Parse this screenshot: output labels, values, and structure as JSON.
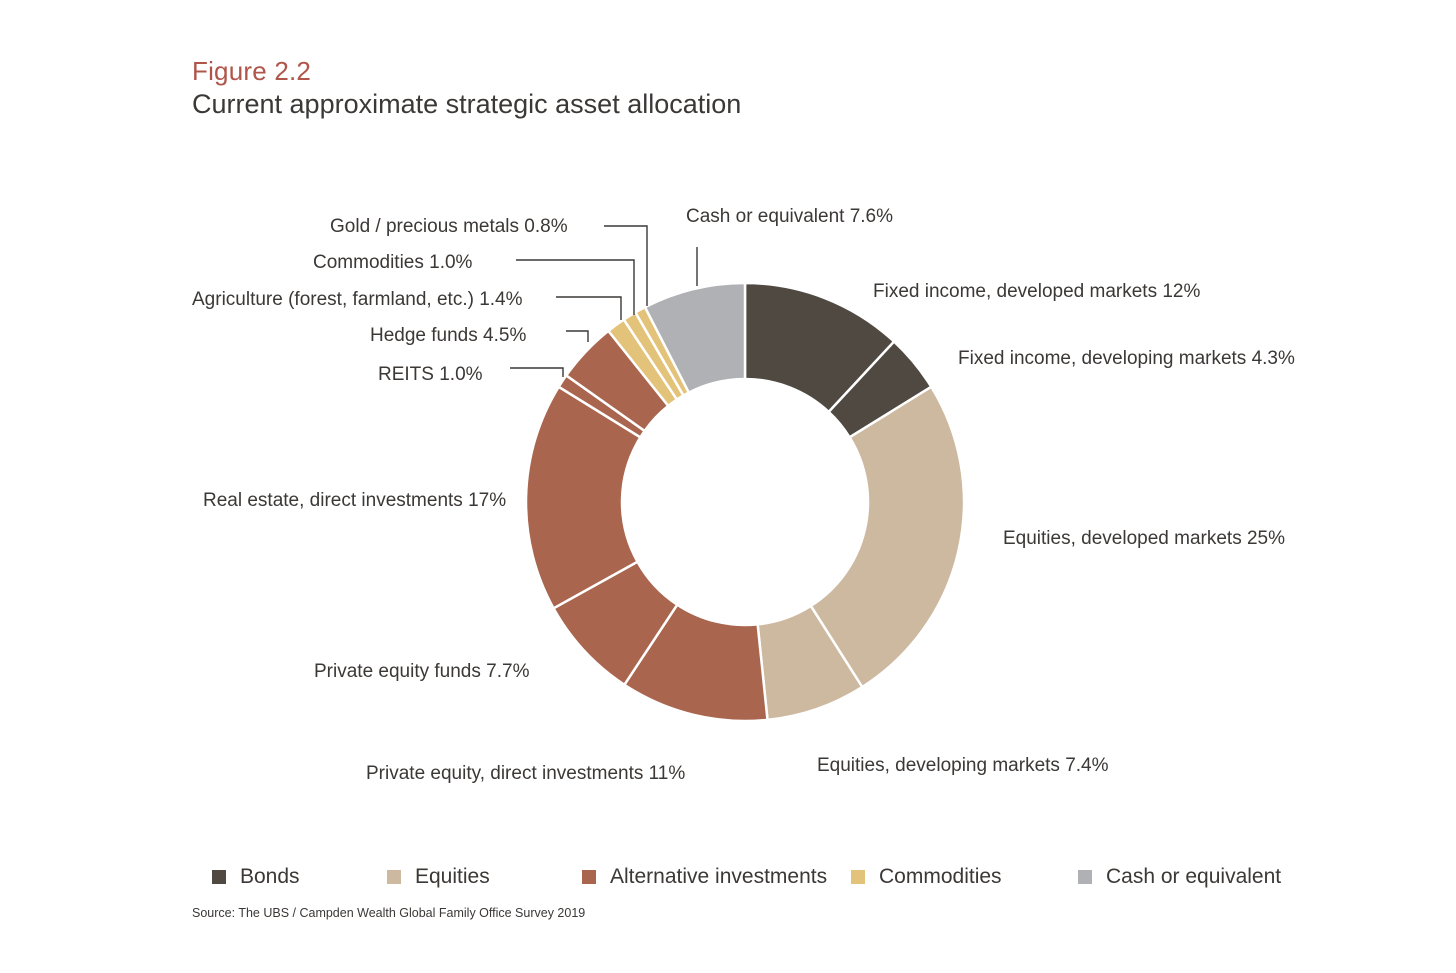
{
  "figure": {
    "label": "Figure 2.2",
    "title": "Current approximate strategic asset allocation"
  },
  "chart_data": {
    "type": "donut",
    "slices": [
      {
        "label": "Fixed income, developed markets 12%",
        "category": "Bonds",
        "value": 12
      },
      {
        "label": "Fixed income, developing markets 4.3%",
        "category": "Bonds",
        "value": 4.3
      },
      {
        "label": "Equities, developed markets 25%",
        "category": "Equities",
        "value": 25
      },
      {
        "label": "Equities, developing markets 7.4%",
        "category": "Equities",
        "value": 7.4
      },
      {
        "label": "Private equity, direct investments 11%",
        "category": "Alternative investments",
        "value": 11
      },
      {
        "label": "Private equity funds 7.7%",
        "category": "Alternative investments",
        "value": 7.7
      },
      {
        "label": "Real estate, direct investments 17%",
        "category": "Alternative investments",
        "value": 17
      },
      {
        "label": "REITS 1.0%",
        "category": "Alternative investments",
        "value": 1.0
      },
      {
        "label": "Hedge funds 4.5%",
        "category": "Alternative investments",
        "value": 4.5
      },
      {
        "label": "Agriculture (forest, farmland, etc.) 1.4%",
        "category": "Commodities",
        "value": 1.4
      },
      {
        "label": "Commodities 1.0%",
        "category": "Commodities",
        "value": 1.0
      },
      {
        "label": "Gold / precious metals 0.8%",
        "category": "Commodities",
        "value": 0.8
      },
      {
        "label": "Cash or equivalent 7.6%",
        "category": "Cash or equivalent",
        "value": 7.6
      }
    ],
    "legend": [
      {
        "name": "Bonds",
        "color": "#4f4942"
      },
      {
        "name": "Equities",
        "color": "#cdb8a0"
      },
      {
        "name": "Alternative investments",
        "color": "#a9654e"
      },
      {
        "name": "Commodities",
        "color": "#e3c27a"
      },
      {
        "name": "Cash or equivalent",
        "color": "#b0b1b4"
      }
    ],
    "legend_position": "bottom"
  },
  "source": "Source: The UBS / Campden Wealth Global Family Office Survey 2019"
}
